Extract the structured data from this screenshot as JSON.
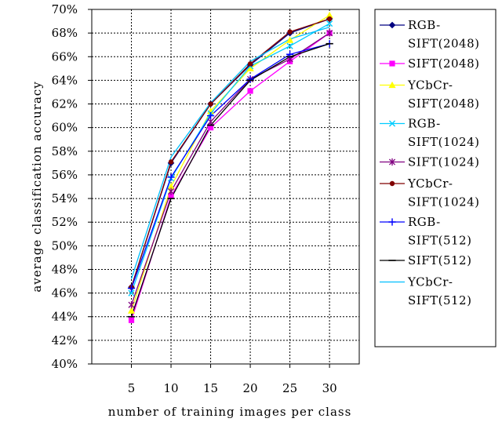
{
  "chart_data": {
    "type": "line",
    "title": "",
    "xlabel": "number of training images per class",
    "ylabel": "average classification accuracy",
    "x": [
      5,
      10,
      15,
      20,
      25,
      30
    ],
    "xticks": [
      "5",
      "10",
      "15",
      "20",
      "25",
      "30"
    ],
    "ylim": [
      40,
      70
    ],
    "yticks": [
      "40%",
      "42%",
      "44%",
      "46%",
      "48%",
      "50%",
      "52%",
      "54%",
      "56%",
      "58%",
      "60%",
      "62%",
      "64%",
      "66%",
      "68%",
      "70%"
    ],
    "grid": true,
    "legend_position": "right",
    "series": [
      {
        "name": "RGB-SIFT(2048)",
        "legend_lines": [
          "RGB-",
          "SIFT(2048)"
        ],
        "color": "#000080",
        "marker": "diamond",
        "values": [
          46.5,
          57.0,
          62.0,
          65.3,
          68.0,
          69.2
        ]
      },
      {
        "name": "SIFT(2048)",
        "legend_lines": [
          "SIFT(2048)"
        ],
        "color": "#ff00ff",
        "marker": "square",
        "values": [
          43.7,
          54.2,
          60.0,
          63.1,
          65.6,
          68.0
        ]
      },
      {
        "name": "YCbCr-SIFT(2048)",
        "legend_lines": [
          "YCbCr-",
          "SIFT(2048)"
        ],
        "color": "#ffff00",
        "marker": "triangle",
        "values": [
          44.5,
          55.0,
          61.4,
          65.0,
          67.4,
          69.5
        ]
      },
      {
        "name": "RGB-SIFT(1024)",
        "legend_lines": [
          "RGB-",
          "SIFT(1024)"
        ],
        "color": "#00ccff",
        "marker": "x",
        "values": [
          46.0,
          55.7,
          61.2,
          65.2,
          66.9,
          68.8
        ]
      },
      {
        "name": "SIFT(1024)",
        "legend_lines": [
          "SIFT(1024)"
        ],
        "color": "#800080",
        "marker": "star",
        "values": [
          45.0,
          54.6,
          60.5,
          64.1,
          65.8,
          68.0
        ]
      },
      {
        "name": "YCbCr-SIFT(1024)",
        "legend_lines": [
          "YCbCr-",
          "SIFT(1024)"
        ],
        "color": "#800000",
        "marker": "circle",
        "values": [
          46.5,
          57.1,
          62.0,
          65.4,
          68.1,
          69.2
        ]
      },
      {
        "name": "RGB-SIFT(512)",
        "legend_lines": [
          "RGB-",
          "SIFT(512)"
        ],
        "color": "#0000ff",
        "marker": "plus",
        "values": [
          46.4,
          55.8,
          61.0,
          64.1,
          66.2,
          67.1
        ]
      },
      {
        "name": "SIFT(512)",
        "legend_lines": [
          "SIFT(512)"
        ],
        "color": "#000000",
        "marker": "dash",
        "values": [
          44.0,
          54.0,
          60.2,
          64.0,
          66.0,
          67.1
        ]
      },
      {
        "name": "YCbCr-SIFT(512)",
        "legend_lines": [
          "YCbCr-",
          "SIFT(512)"
        ],
        "color": "#00bfff",
        "marker": "none",
        "values": [
          47.2,
          57.5,
          62.1,
          65.6,
          67.5,
          68.5
        ]
      }
    ]
  }
}
